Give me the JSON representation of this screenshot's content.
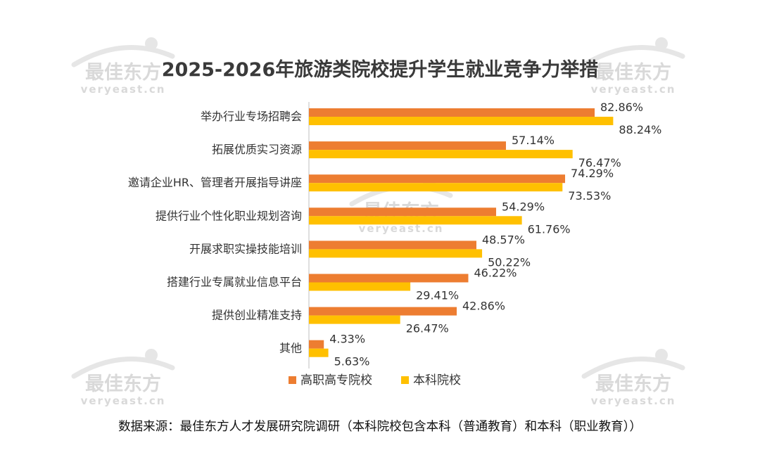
{
  "watermark": {
    "cn": "最佳东方",
    "en": "veryeast.cn"
  },
  "chart_data": {
    "type": "bar",
    "orientation": "horizontal",
    "title": "2025-2026年旅游类院校提升学生就业竞争力举措",
    "categories": [
      "举办行业专场招聘会",
      "拓展优质实习资源",
      "邀请企业HR、管理者开展指导讲座",
      "提供行业个性化职业规划咨询",
      "开展求职实操技能培训",
      "搭建行业专属就业信息平台",
      "提供创业精准支持",
      "其他"
    ],
    "series": [
      {
        "name": "高职高专院校",
        "color": "#ed7d31",
        "values": [
          82.86,
          57.14,
          74.29,
          54.29,
          48.57,
          46.22,
          42.86,
          4.33
        ],
        "labels": [
          "82.86%",
          "57.14%",
          "74.29%",
          "54.29%",
          "48.57%",
          "46.22%",
          "42.86%",
          "4.33%"
        ]
      },
      {
        "name": "本科院校",
        "color": "#ffc000",
        "values": [
          88.24,
          76.47,
          73.53,
          61.76,
          50.22,
          29.41,
          26.47,
          5.63
        ],
        "labels": [
          "88.24%",
          "76.47%",
          "73.53%",
          "61.76%",
          "50.22%",
          "29.41%",
          "26.47%",
          "5.63%"
        ]
      }
    ],
    "xlim": [
      0,
      100
    ],
    "grid": false,
    "legend_position": "bottom"
  },
  "source_note": "数据来源：最佳东方人才发展研究院调研（本科院校包含本科（普通教育）和本科（职业教育））"
}
